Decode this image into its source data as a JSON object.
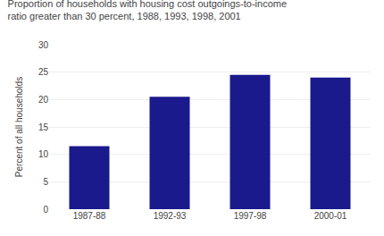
{
  "chart_data": {
    "type": "bar",
    "title": "Proportion of households with housing cost outgoings-to-income",
    "subtitle": "ratio greater than 30 percent, 1988, 1993, 1998, 2001",
    "categories": [
      "1987-88",
      "1992-93",
      "1997-98",
      "2000-01"
    ],
    "values": [
      11.5,
      20.5,
      24.5,
      24.0
    ],
    "color": "#1a1a8c",
    "ylabel": "Percent of all households",
    "ylim": [
      0,
      30
    ],
    "yticks": [
      0,
      5,
      10,
      15,
      20,
      25,
      30
    ],
    "grid": true
  }
}
